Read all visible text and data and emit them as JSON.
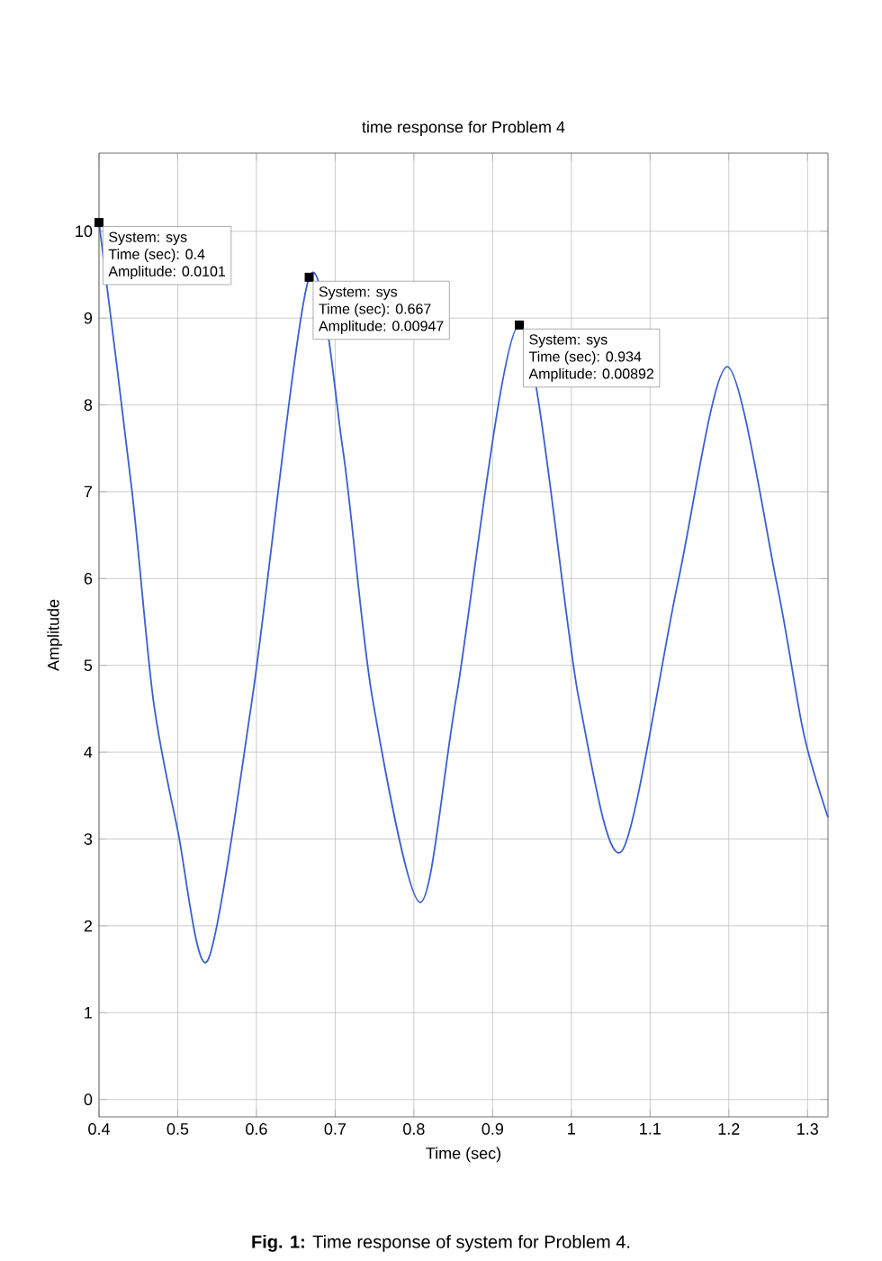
{
  "chart_data": {
    "type": "line",
    "title": "time response for Problem 4",
    "xlabel": "Time (sec)",
    "ylabel": "Amplitude",
    "x": [
      0.4,
      0.442,
      0.469,
      0.5,
      0.538,
      0.595,
      0.667,
      0.71,
      0.747,
      0.808,
      0.854,
      0.934,
      1.009,
      1.064,
      1.135,
      1.198,
      1.261,
      1.295,
      1.326
    ],
    "series": [
      {
        "color": "#3a5fcd",
        "values": [
          10.1,
          7.0,
          4.6,
          3.1,
          1.6,
          4.64,
          9.47,
          7.47,
          4.64,
          2.27,
          4.64,
          8.92,
          4.64,
          2.86,
          5.94,
          8.44,
          5.94,
          4.22,
          3.25
        ]
      }
    ],
    "xlim": [
      0.4,
      1.326
    ],
    "ylim": [
      -0.2,
      10.9
    ],
    "xticks": [
      0.4,
      0.5,
      0.6,
      0.7,
      0.8,
      0.9,
      1,
      1.1,
      1.2,
      1.3
    ],
    "yticks": [
      0,
      1,
      2,
      3,
      4,
      5,
      6,
      7,
      8,
      9,
      10
    ],
    "grid": true,
    "marker": "none",
    "line_style": "solid",
    "annotations": [
      {
        "text": "System: sys",
        "x": 0.4,
        "y": 10.1
      },
      "Time (sec): 0.4",
      "Amplitude: 0.0101",
      {
        "text": "System: sys",
        "x": 0.667,
        "y": 9.47
      },
      "Time (sec): 0.667",
      "Amplitude: 0.00947",
      {
        "text": "System: sys",
        "x": 0.934,
        "y": 8.92
      },
      "Time (sec): 0.934",
      "Amplitude: 0.00892",
      "**Fig. 1:** Time response of system for Problem 4."
    ]
  }
}
